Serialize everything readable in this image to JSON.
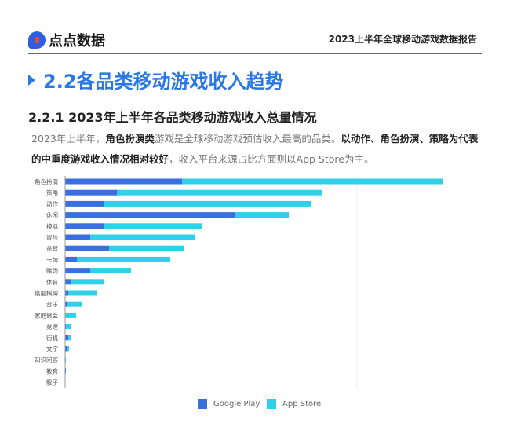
{
  "header": {
    "logo_text": "点点数据",
    "report_title": "2023上半年全球移动游戏数据报告"
  },
  "section": {
    "title": "2.2各品类移动游戏收入趋势",
    "subtitle": "2.2.1  2023年上半年各品类移动游戏收入总量情况"
  },
  "paragraph": {
    "p1": "2023年上半年，",
    "p2": "角色扮演类",
    "p3": "游戏是全球移动游戏预估收入最高的品类。",
    "p4": "以动作、角色扮演、策略为代表的中重度游戏收入情况相对较好",
    "p5": "，收入平台来源占比方面则以App Store为主。"
  },
  "chart_data": {
    "type": "bar",
    "orientation": "horizontal",
    "stacked": true,
    "categories": [
      "角色扮演",
      "策略",
      "动作",
      "休闲",
      "模拟",
      "冒险",
      "益智",
      "卡牌",
      "赌场",
      "体育",
      "桌面棋牌",
      "音乐",
      "家庭聚会",
      "竞速",
      "街机",
      "文字",
      "知识问答",
      "教育",
      "骰子"
    ],
    "series": [
      {
        "name": "Google Play",
        "color": "#3a6fe0",
        "values": [
          149,
          66,
          50,
          216,
          49,
          32,
          56,
          15,
          32,
          8,
          4,
          2,
          0,
          1,
          4,
          3,
          0,
          1,
          0
        ]
      },
      {
        "name": "App Store",
        "color": "#2fd0e8",
        "values": [
          333,
          261,
          264,
          69,
          125,
          134,
          96,
          119,
          52,
          42,
          36,
          19,
          14,
          7,
          3,
          2,
          1,
          0,
          0.3
        ]
      }
    ],
    "legend": "bottom",
    "grid": false
  }
}
